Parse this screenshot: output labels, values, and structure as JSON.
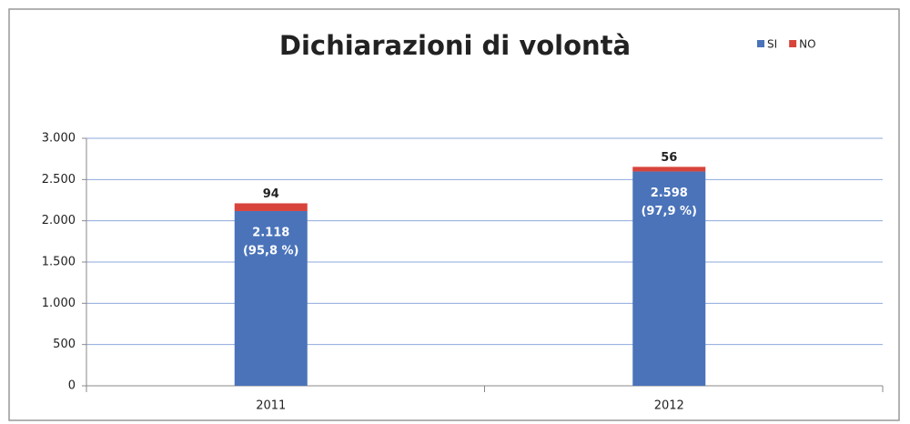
{
  "chart_data": {
    "type": "stacked_bar",
    "title": "Dichiarazioni di volontà",
    "categories": [
      "2011",
      "2012"
    ],
    "series": [
      {
        "name": "SI",
        "color": "#4a73b9",
        "values": [
          2118,
          2598
        ],
        "value_labels": [
          "2.118",
          "2.598"
        ],
        "share_labels": [
          "(95,8 %)",
          "(97,9 %)"
        ]
      },
      {
        "name": "NO",
        "color": "#d8443c",
        "values": [
          94,
          56
        ]
      }
    ],
    "ylim": [
      0,
      3000
    ],
    "yticks": [
      0,
      500,
      {
        "value": 1000,
        "label": "1.000"
      },
      {
        "value": 1500,
        "label": "1.500"
      },
      {
        "value": 2000,
        "label": "2.000"
      },
      {
        "value": 2500,
        "label": "2.500"
      },
      {
        "value": 3000,
        "label": "3.000"
      }
    ],
    "grid": true,
    "legend": "top-right"
  }
}
